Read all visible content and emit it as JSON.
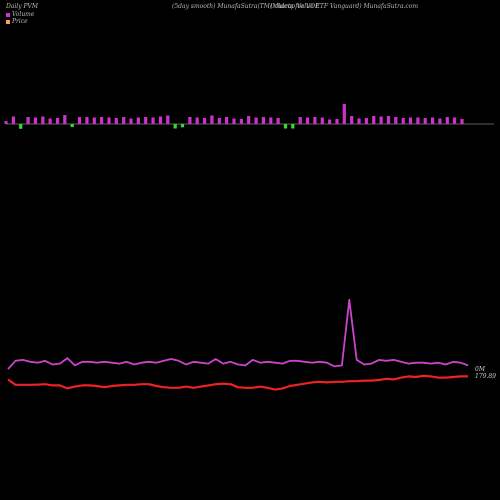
{
  "header": {
    "left": "Daily PVM",
    "middle": "(5day smooth) MunafaSutra(TM) charts for VOE",
    "right": "(Midcap Value   ETF Vanguard) MunafaSutra.com"
  },
  "legend": [
    {
      "label": "Volume",
      "color": "#cc33cc"
    },
    {
      "label": "Price",
      "color": "#ff9966"
    }
  ],
  "chart_data": {
    "type": "line",
    "title": "",
    "series": [
      {
        "name": "Volume",
        "color": "#cc44cc",
        "end_label": "0M",
        "values": [
          0.1,
          0.55,
          0.6,
          0.5,
          0.45,
          0.55,
          0.35,
          0.4,
          0.7,
          0.3,
          0.5,
          0.5,
          0.45,
          0.5,
          0.45,
          0.4,
          0.5,
          0.35,
          0.45,
          0.5,
          0.45,
          0.55,
          0.65,
          0.55,
          0.35,
          0.5,
          0.45,
          0.4,
          0.65,
          0.4,
          0.5,
          0.35,
          0.3,
          0.6,
          0.45,
          0.5,
          0.45,
          0.4,
          0.55,
          0.55,
          0.5,
          0.45,
          0.5,
          0.45,
          0.25,
          0.3,
          3.85,
          0.6,
          0.35,
          0.4,
          0.6,
          0.55,
          0.6,
          0.5,
          0.4,
          0.45,
          0.45,
          0.4,
          0.45,
          0.35,
          0.5,
          0.45,
          0.3
        ]
      },
      {
        "name": "Price",
        "color": "#ee2222",
        "end_label": "179.89",
        "values": [
          0.55,
          0.1,
          0.1,
          0.1,
          0.12,
          0.15,
          0.05,
          0.05,
          -0.2,
          -0.05,
          0.05,
          0.05,
          0.0,
          -0.1,
          0.0,
          0.05,
          0.1,
          0.1,
          0.15,
          0.15,
          0.0,
          -0.1,
          -0.15,
          -0.15,
          -0.05,
          -0.15,
          -0.05,
          0.05,
          0.15,
          0.2,
          0.15,
          -0.1,
          -0.15,
          -0.15,
          -0.05,
          -0.15,
          -0.3,
          -0.2,
          0.0,
          0.1,
          0.2,
          0.3,
          0.35,
          0.3,
          0.35,
          0.35,
          0.4,
          0.4,
          0.45,
          0.45,
          0.5,
          0.6,
          0.55,
          0.7,
          0.8,
          0.75,
          0.85,
          0.8,
          0.7,
          0.7,
          0.75,
          0.8,
          0.8
        ]
      }
    ],
    "bars": {
      "positive_color": "#cc33cc",
      "negative_color": "#33dd33",
      "values": [
        1,
        1,
        -1,
        1,
        1,
        1,
        1,
        1,
        1,
        -1,
        1,
        1,
        1,
        1,
        1,
        1,
        1,
        1,
        1,
        1,
        1,
        1,
        1,
        -1,
        -1,
        1,
        1,
        1,
        1,
        1,
        1,
        1,
        1,
        1,
        1,
        1,
        1,
        1,
        -1,
        -1,
        1,
        1,
        1,
        1,
        1,
        1,
        1,
        1,
        1,
        1,
        1,
        1,
        1,
        1,
        1,
        1,
        1,
        1,
        1,
        1,
        1,
        1,
        1,
        1,
        1,
        1,
        1,
        1,
        1,
        1,
        1,
        1,
        1,
        1,
        1,
        1,
        1,
        1,
        1,
        1,
        1,
        1,
        1,
        1,
        1,
        1,
        1,
        1,
        1,
        1,
        1,
        1,
        1,
        1,
        1,
        1,
        1,
        1,
        1,
        1,
        1,
        1,
        1,
        1
      ]
    }
  }
}
